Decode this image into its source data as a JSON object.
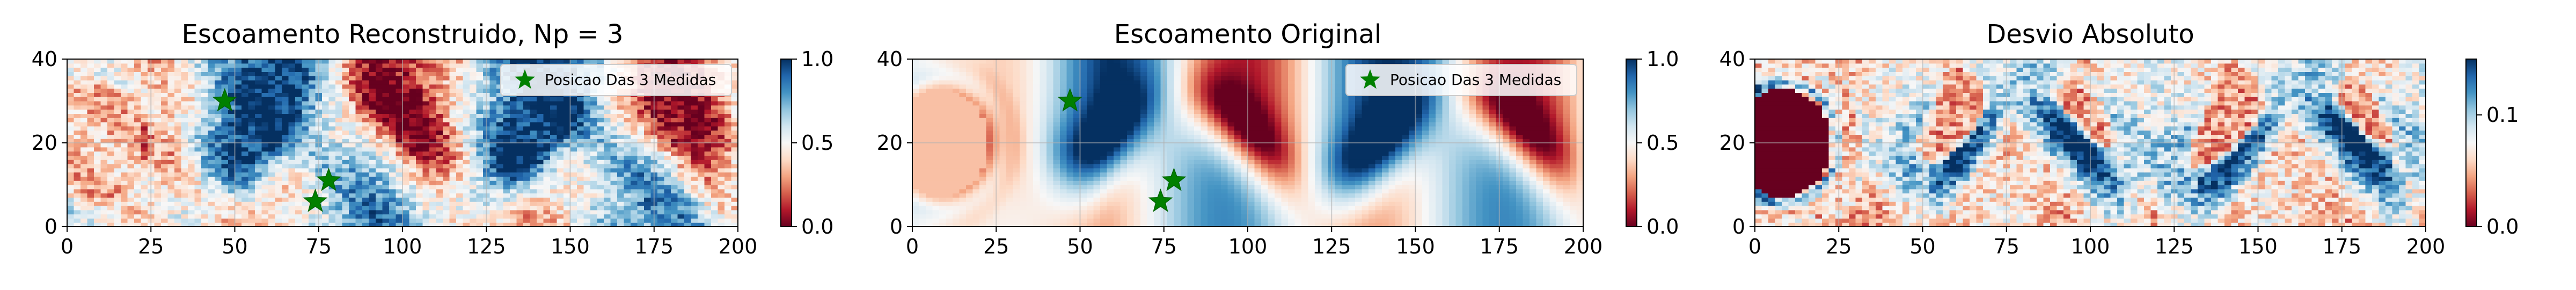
{
  "figure": {
    "background": "#ffffff",
    "colormap": "RdBu",
    "colormap_stops": [
      "#67001f",
      "#b2182b",
      "#d6604d",
      "#f4a582",
      "#fddbc7",
      "#f7f7f7",
      "#d1e5f0",
      "#92c5de",
      "#4393c3",
      "#2166ac",
      "#053061"
    ]
  },
  "chart_data": [
    {
      "type": "heatmap",
      "title": "Escoamento Reconstruido, Np = 3",
      "xlabel": "",
      "ylabel": "",
      "xlim": [
        0,
        200
      ],
      "ylim": [
        0,
        40
      ],
      "xticks": [
        "0",
        "25",
        "50",
        "75",
        "100",
        "125",
        "150",
        "175",
        "200"
      ],
      "yticks": [
        "0",
        "20",
        "40"
      ],
      "field": "reconstructed_noisy",
      "grid": true,
      "colorbar": {
        "range": [
          0.0,
          1.0
        ],
        "ticks": [
          "0.0",
          "0.5",
          "1.0"
        ]
      },
      "legend": {
        "placement": "top-right",
        "label": "Posicao Das 3 Medidas",
        "marker": "star",
        "color": "#008000"
      },
      "markers": [
        {
          "x": 47,
          "y": 30
        },
        {
          "x": 74,
          "y": 6
        },
        {
          "x": 78,
          "y": 11
        }
      ],
      "obstacle": {
        "x_center": 8,
        "y_center": 20,
        "radius": 13,
        "value": 0.35
      }
    },
    {
      "type": "heatmap",
      "title": "Escoamento Original",
      "xlabel": "",
      "ylabel": "",
      "xlim": [
        0,
        200
      ],
      "ylim": [
        0,
        40
      ],
      "xticks": [
        "0",
        "25",
        "50",
        "75",
        "100",
        "125",
        "150",
        "175",
        "200"
      ],
      "yticks": [
        "0",
        "20",
        "40"
      ],
      "field": "original",
      "grid": true,
      "colorbar": {
        "range": [
          0.0,
          1.0
        ],
        "ticks": [
          "0.0",
          "0.5",
          "1.0"
        ]
      },
      "legend": {
        "placement": "top-right",
        "label": "Posicao Das 3 Medidas",
        "marker": "star",
        "color": "#008000"
      },
      "markers": [
        {
          "x": 47,
          "y": 30
        },
        {
          "x": 74,
          "y": 6
        },
        {
          "x": 78,
          "y": 11
        }
      ],
      "obstacle": {
        "x_center": 8,
        "y_center": 20,
        "radius": 13,
        "value": 0.35
      }
    },
    {
      "type": "heatmap",
      "title": "Desvio Absoluto",
      "xlabel": "",
      "ylabel": "",
      "xlim": [
        0,
        200
      ],
      "ylim": [
        0,
        40
      ],
      "xticks": [
        "0",
        "25",
        "50",
        "75",
        "100",
        "125",
        "150",
        "175",
        "200"
      ],
      "yticks": [
        "0",
        "20",
        "40"
      ],
      "field": "abs_deviation",
      "grid": true,
      "colorbar": {
        "range": [
          0.0,
          0.15
        ],
        "ticks": [
          "0.0",
          "0.1"
        ],
        "tick_values": [
          0.0,
          0.1
        ]
      },
      "obstacle": {
        "x_center": 8,
        "y_center": 20,
        "radius": 13,
        "value": 0.0
      }
    }
  ]
}
